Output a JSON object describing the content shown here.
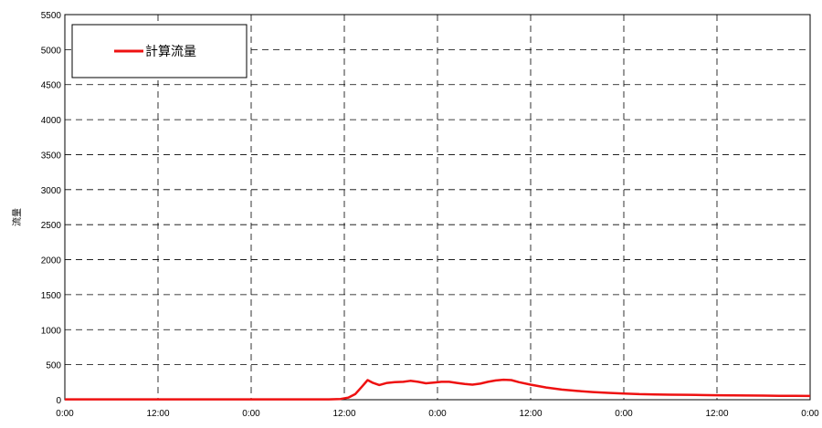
{
  "chart_data": {
    "type": "line",
    "ylabel": "流量",
    "xlabel": "",
    "title": "",
    "ylim": [
      0,
      5500
    ],
    "yticks": [
      0,
      500,
      1000,
      1500,
      2000,
      2500,
      3000,
      3500,
      4000,
      4500,
      5000,
      5500
    ],
    "xlim_hours": [
      0,
      96
    ],
    "xticks": [
      {
        "hours": 0,
        "label": "0:00"
      },
      {
        "hours": 12,
        "label": "12:00"
      },
      {
        "hours": 24,
        "label": "0:00"
      },
      {
        "hours": 36,
        "label": "12:00"
      },
      {
        "hours": 48,
        "label": "0:00"
      },
      {
        "hours": 60,
        "label": "12:00"
      },
      {
        "hours": 72,
        "label": "0:00"
      },
      {
        "hours": 84,
        "label": "12:00"
      },
      {
        "hours": 96,
        "label": "0:00"
      }
    ],
    "grid": true,
    "legend_position": "top-left",
    "series": [
      {
        "name": "計算流量",
        "color": "#ee1111",
        "x_hours": [
          0,
          12,
          24,
          34,
          35.5,
          36.5,
          37.4,
          38.3,
          39,
          39.7,
          40.5,
          41.5,
          42.5,
          43.6,
          44.5,
          45.5,
          46.5,
          47.5,
          48.5,
          49.5,
          50.5,
          51.5,
          52.5,
          53.5,
          54.5,
          55.5,
          56.5,
          57.5,
          58.5,
          60,
          62,
          64,
          66,
          68,
          70,
          72,
          74,
          76,
          78,
          80,
          82,
          84,
          86,
          88,
          90,
          92,
          94,
          96
        ],
        "y": [
          5,
          5,
          5,
          5,
          10,
          30,
          80,
          190,
          280,
          240,
          210,
          240,
          250,
          255,
          270,
          255,
          235,
          245,
          255,
          255,
          240,
          225,
          215,
          230,
          255,
          275,
          285,
          280,
          250,
          215,
          175,
          145,
          125,
          110,
          98,
          88,
          80,
          75,
          72,
          70,
          66,
          64,
          62,
          60,
          58,
          56,
          55,
          53
        ]
      }
    ]
  }
}
